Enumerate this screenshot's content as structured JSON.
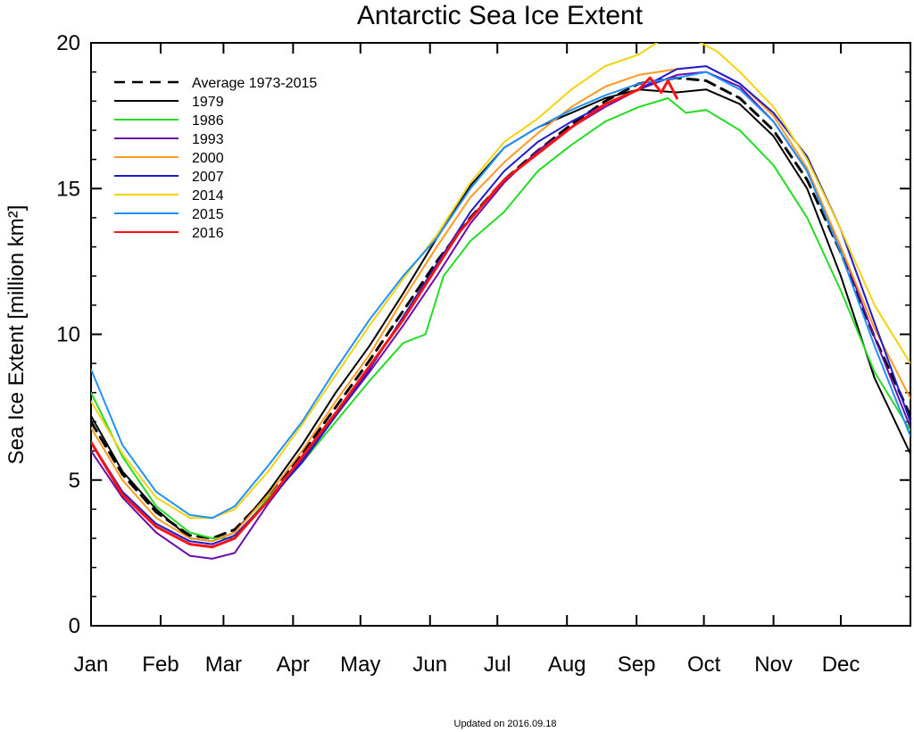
{
  "chart_data": {
    "type": "line",
    "title": "Antarctic Sea Ice Extent",
    "xlabel": "",
    "ylabel": "Sea Ice Extent [million km²]",
    "xlim": [
      1,
      366
    ],
    "ylim": [
      0,
      20
    ],
    "yticks": [
      0,
      5,
      10,
      15,
      20
    ],
    "ytick_labels": [
      "0",
      "5",
      "10",
      "15",
      "20"
    ],
    "months": [
      "Jan",
      "Feb",
      "Mar",
      "Apr",
      "May",
      "Jun",
      "Jul",
      "Aug",
      "Sep",
      "Oct",
      "Nov",
      "Dec"
    ],
    "grid": false,
    "legend": "top-left",
    "footer": "Updated on 2016.09.18",
    "series": [
      {
        "name": "Average 1973-2015",
        "color": "#000000",
        "dashed": true,
        "width": 3,
        "points": [
          [
            1,
            7.0
          ],
          [
            15,
            5.2
          ],
          [
            30,
            3.9
          ],
          [
            45,
            3.1
          ],
          [
            55,
            3.0
          ],
          [
            65,
            3.3
          ],
          [
            80,
            4.5
          ],
          [
            95,
            5.9
          ],
          [
            110,
            7.5
          ],
          [
            125,
            9.1
          ],
          [
            140,
            10.8
          ],
          [
            155,
            12.5
          ],
          [
            170,
            14.0
          ],
          [
            185,
            15.3
          ],
          [
            200,
            16.3
          ],
          [
            215,
            17.2
          ],
          [
            230,
            18.0
          ],
          [
            245,
            18.6
          ],
          [
            262,
            18.8
          ],
          [
            275,
            18.7
          ],
          [
            290,
            18.1
          ],
          [
            305,
            17.0
          ],
          [
            320,
            15.3
          ],
          [
            335,
            12.8
          ],
          [
            350,
            9.9
          ],
          [
            366,
            7.2
          ]
        ]
      },
      {
        "name": "1979",
        "color": "#000000",
        "dashed": false,
        "width": 2,
        "points": [
          [
            1,
            7.2
          ],
          [
            15,
            5.3
          ],
          [
            30,
            4.0
          ],
          [
            45,
            3.0
          ],
          [
            55,
            2.9
          ],
          [
            65,
            3.2
          ],
          [
            80,
            4.6
          ],
          [
            95,
            6.2
          ],
          [
            110,
            8.0
          ],
          [
            125,
            9.6
          ],
          [
            140,
            11.4
          ],
          [
            155,
            13.3
          ],
          [
            170,
            15.1
          ],
          [
            185,
            16.4
          ],
          [
            200,
            17.1
          ],
          [
            215,
            17.6
          ],
          [
            230,
            18.1
          ],
          [
            245,
            18.4
          ],
          [
            262,
            18.3
          ],
          [
            275,
            18.4
          ],
          [
            290,
            17.9
          ],
          [
            305,
            16.8
          ],
          [
            320,
            15.0
          ],
          [
            335,
            12.0
          ],
          [
            350,
            8.5
          ],
          [
            366,
            5.9
          ]
        ]
      },
      {
        "name": "1986",
        "color": "#22dd22",
        "dashed": false,
        "width": 2,
        "points": [
          [
            1,
            8.0
          ],
          [
            15,
            5.8
          ],
          [
            30,
            4.1
          ],
          [
            45,
            3.2
          ],
          [
            55,
            3.0
          ],
          [
            65,
            3.0
          ],
          [
            80,
            4.4
          ],
          [
            95,
            5.6
          ],
          [
            110,
            7.0
          ],
          [
            125,
            8.4
          ],
          [
            140,
            9.7
          ],
          [
            150,
            10.0
          ],
          [
            158,
            12.0
          ],
          [
            170,
            13.2
          ],
          [
            185,
            14.2
          ],
          [
            200,
            15.6
          ],
          [
            215,
            16.5
          ],
          [
            230,
            17.3
          ],
          [
            245,
            17.8
          ],
          [
            258,
            18.1
          ],
          [
            266,
            17.6
          ],
          [
            275,
            17.7
          ],
          [
            290,
            17.0
          ],
          [
            305,
            15.8
          ],
          [
            320,
            14.0
          ],
          [
            335,
            11.5
          ],
          [
            350,
            8.7
          ],
          [
            366,
            6.7
          ]
        ]
      },
      {
        "name": "1993",
        "color": "#6a0dad",
        "dashed": false,
        "width": 2,
        "points": [
          [
            1,
            6.0
          ],
          [
            15,
            4.4
          ],
          [
            30,
            3.2
          ],
          [
            45,
            2.4
          ],
          [
            55,
            2.3
          ],
          [
            65,
            2.5
          ],
          [
            80,
            4.2
          ],
          [
            95,
            5.7
          ],
          [
            110,
            7.2
          ],
          [
            125,
            8.7
          ],
          [
            140,
            10.3
          ],
          [
            155,
            12.0
          ],
          [
            170,
            13.8
          ],
          [
            185,
            15.2
          ],
          [
            200,
            16.3
          ],
          [
            215,
            17.1
          ],
          [
            230,
            17.8
          ],
          [
            245,
            18.4
          ],
          [
            262,
            18.9
          ],
          [
            275,
            19.0
          ],
          [
            290,
            18.5
          ],
          [
            305,
            17.3
          ],
          [
            320,
            15.6
          ],
          [
            335,
            13.0
          ],
          [
            350,
            9.9
          ],
          [
            366,
            6.8
          ]
        ]
      },
      {
        "name": "2000",
        "color": "#ff9922",
        "dashed": false,
        "width": 2,
        "points": [
          [
            1,
            6.8
          ],
          [
            15,
            5.0
          ],
          [
            30,
            3.7
          ],
          [
            45,
            3.0
          ],
          [
            55,
            2.9
          ],
          [
            65,
            3.2
          ],
          [
            80,
            4.5
          ],
          [
            95,
            6.0
          ],
          [
            110,
            7.7
          ],
          [
            125,
            9.3
          ],
          [
            140,
            11.2
          ],
          [
            155,
            13.0
          ],
          [
            170,
            14.7
          ],
          [
            185,
            15.9
          ],
          [
            200,
            16.9
          ],
          [
            215,
            17.8
          ],
          [
            230,
            18.5
          ],
          [
            245,
            18.9
          ],
          [
            262,
            19.1
          ],
          [
            275,
            19.2
          ],
          [
            290,
            18.6
          ],
          [
            305,
            17.5
          ],
          [
            320,
            15.7
          ],
          [
            335,
            13.0
          ],
          [
            350,
            10.2
          ],
          [
            366,
            7.8
          ]
        ]
      },
      {
        "name": "2007",
        "color": "#1c1ccf",
        "dashed": false,
        "width": 2,
        "points": [
          [
            1,
            6.3
          ],
          [
            15,
            4.6
          ],
          [
            30,
            3.5
          ],
          [
            45,
            2.9
          ],
          [
            55,
            2.8
          ],
          [
            65,
            3.1
          ],
          [
            80,
            4.3
          ],
          [
            95,
            5.6
          ],
          [
            110,
            7.2
          ],
          [
            125,
            8.8
          ],
          [
            140,
            10.6
          ],
          [
            155,
            12.4
          ],
          [
            170,
            14.2
          ],
          [
            185,
            15.6
          ],
          [
            200,
            16.6
          ],
          [
            215,
            17.3
          ],
          [
            230,
            17.9
          ],
          [
            245,
            18.4
          ],
          [
            262,
            19.1
          ],
          [
            275,
            19.2
          ],
          [
            290,
            18.6
          ],
          [
            305,
            17.6
          ],
          [
            320,
            16.1
          ],
          [
            335,
            13.6
          ],
          [
            350,
            10.4
          ],
          [
            366,
            7.0
          ]
        ]
      },
      {
        "name": "2014",
        "color": "#f5d20a",
        "dashed": false,
        "width": 2,
        "points": [
          [
            1,
            7.7
          ],
          [
            15,
            5.9
          ],
          [
            30,
            4.4
          ],
          [
            45,
            3.7
          ],
          [
            55,
            3.7
          ],
          [
            65,
            4.0
          ],
          [
            80,
            5.3
          ],
          [
            95,
            6.9
          ],
          [
            110,
            8.6
          ],
          [
            125,
            10.3
          ],
          [
            140,
            11.9
          ],
          [
            155,
            13.4
          ],
          [
            170,
            15.2
          ],
          [
            185,
            16.6
          ],
          [
            200,
            17.4
          ],
          [
            215,
            18.4
          ],
          [
            230,
            19.2
          ],
          [
            245,
            19.6
          ],
          [
            255,
            20.1
          ],
          [
            262,
            20.4
          ],
          [
            270,
            20.1
          ],
          [
            280,
            19.7
          ],
          [
            290,
            19.0
          ],
          [
            305,
            17.8
          ],
          [
            320,
            16.0
          ],
          [
            335,
            13.6
          ],
          [
            350,
            11.0
          ],
          [
            366,
            9.0
          ]
        ]
      },
      {
        "name": "2015",
        "color": "#1e90ff",
        "dashed": false,
        "width": 2,
        "points": [
          [
            1,
            8.8
          ],
          [
            15,
            6.2
          ],
          [
            30,
            4.6
          ],
          [
            45,
            3.8
          ],
          [
            55,
            3.7
          ],
          [
            65,
            4.1
          ],
          [
            80,
            5.5
          ],
          [
            95,
            7.0
          ],
          [
            110,
            8.8
          ],
          [
            125,
            10.5
          ],
          [
            140,
            12.0
          ],
          [
            155,
            13.3
          ],
          [
            170,
            15.0
          ],
          [
            185,
            16.4
          ],
          [
            200,
            17.1
          ],
          [
            215,
            17.7
          ],
          [
            230,
            18.2
          ],
          [
            245,
            18.6
          ],
          [
            262,
            18.8
          ],
          [
            275,
            19.0
          ],
          [
            290,
            18.4
          ],
          [
            305,
            17.3
          ],
          [
            320,
            15.6
          ],
          [
            335,
            12.8
          ],
          [
            350,
            9.6
          ],
          [
            366,
            6.5
          ]
        ]
      },
      {
        "name": "2016",
        "color": "#ff1111",
        "dashed": false,
        "width": 3,
        "points": [
          [
            1,
            6.3
          ],
          [
            15,
            4.5
          ],
          [
            30,
            3.4
          ],
          [
            45,
            2.8
          ],
          [
            55,
            2.7
          ],
          [
            65,
            3.0
          ],
          [
            80,
            4.3
          ],
          [
            95,
            5.8
          ],
          [
            110,
            7.3
          ],
          [
            125,
            8.9
          ],
          [
            140,
            10.5
          ],
          [
            155,
            12.3
          ],
          [
            165,
            13.5
          ],
          [
            175,
            14.4
          ],
          [
            185,
            15.3
          ],
          [
            200,
            16.2
          ],
          [
            215,
            17.1
          ],
          [
            230,
            17.9
          ],
          [
            245,
            18.4
          ],
          [
            250,
            18.8
          ],
          [
            255,
            18.3
          ],
          [
            258,
            18.7
          ],
          [
            262,
            18.1
          ]
        ]
      }
    ]
  }
}
